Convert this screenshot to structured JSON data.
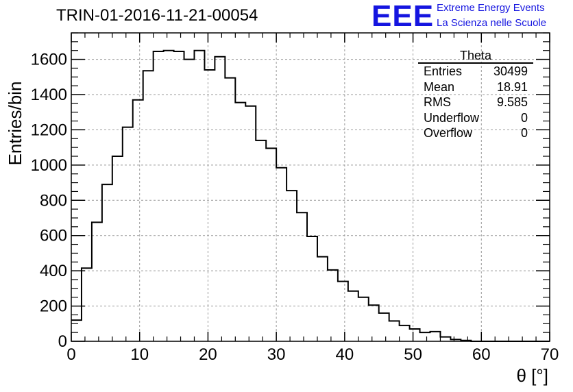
{
  "title": "TRIN-01-2016-11-21-00054",
  "logo": {
    "mark": "EEE",
    "line1": "Extreme Energy Events",
    "line2": "La Scienza nelle Scuole",
    "color": "#1515e0"
  },
  "stats_box": {
    "name": "Theta",
    "entries": [
      {
        "label": "Entries",
        "value": "30499"
      },
      {
        "label": "Mean",
        "value": "18.91"
      },
      {
        "label": "RMS",
        "value": "9.585"
      },
      {
        "label": "Underflow",
        "value": "0"
      },
      {
        "label": "Overflow",
        "value": "0"
      }
    ]
  },
  "chart_data": {
    "type": "histogram",
    "title": "TRIN-01-2016-11-21-00054",
    "xlabel": "θ [°]",
    "ylabel": "Entries/bin",
    "xlim": [
      0,
      70
    ],
    "ylim": [
      0,
      1750
    ],
    "bin_width": 1.5,
    "x_start": 0,
    "xticks": [
      0,
      10,
      20,
      30,
      40,
      50,
      60,
      70
    ],
    "yticks": [
      0,
      200,
      400,
      600,
      800,
      1000,
      1200,
      1400,
      1600
    ],
    "grid": true,
    "values": [
      120,
      415,
      675,
      890,
      1050,
      1215,
      1370,
      1535,
      1645,
      1650,
      1645,
      1600,
      1650,
      1540,
      1615,
      1495,
      1355,
      1335,
      1140,
      1095,
      985,
      855,
      730,
      595,
      480,
      405,
      340,
      285,
      250,
      205,
      160,
      115,
      90,
      70,
      50,
      55,
      25,
      10,
      5,
      0,
      0,
      0,
      0,
      0,
      0,
      0,
      0
    ],
    "line_color": "#000000"
  }
}
